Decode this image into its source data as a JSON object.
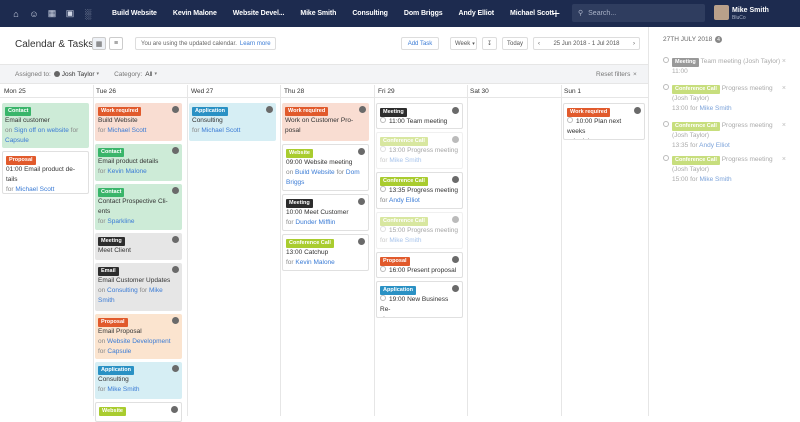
{
  "topbar": {
    "icons": [
      "home-icon",
      "person-icon",
      "calendar-icon",
      "briefcase-icon",
      "building-icon"
    ],
    "tabs": [
      "Build Website",
      "Kevin Malone",
      "Website Devel...",
      "Mike Smith",
      "Consulting",
      "Dom Briggs",
      "Andy Elliot",
      "Michael Scott"
    ],
    "search_placeholder": "Search...",
    "user_name": "Mike Smith",
    "user_company": "BluCo"
  },
  "header": {
    "title": "Calendar & Tasks",
    "notice": "You are using the updated calendar.",
    "notice_link": "Learn more",
    "add_task": "Add Task",
    "view_select": "Week",
    "today": "Today",
    "date_range": "25 Jun 2018 - 1 Jul 2018"
  },
  "filters": {
    "assigned_label": "Assigned to:",
    "assigned_value": "Josh Taylor",
    "category_label": "Category:",
    "category_value": "All",
    "reset": "Reset filters"
  },
  "days": [
    "Mon 25",
    "Tue 26",
    "Wed 27",
    "Thu 28",
    "Fri 29",
    "Sat 30",
    "Sun 1"
  ],
  "mon": [
    {
      "badge": "Contact",
      "t1": "Email customer",
      "on": "on",
      "link": "Sign off on website",
      "for": "for",
      "who": "Capsule"
    },
    {
      "badge": "Proposal",
      "t1": "01:00 Email product de-",
      "t2": "tails",
      "for": "for",
      "who": "Michael Scott"
    }
  ],
  "tue": [
    {
      "badge": "Work required",
      "t1": "Build Website",
      "for": "for",
      "who": "Michael Scott"
    },
    {
      "badge": "Contact",
      "t1": "Email product details",
      "for": "for",
      "who": "Kevin Malone"
    },
    {
      "badge": "Contact",
      "t1": "Contact Prospective Cli-",
      "t2": "ents",
      "for": "for",
      "who": "Sparkline"
    },
    {
      "badge": "Meeting",
      "t1": "Meet Client"
    },
    {
      "badge": "Email",
      "t1": "Email Customer Updates",
      "on": "on",
      "link": "Consulting",
      "for": "for",
      "who": "Mike",
      "who2": "Smith"
    },
    {
      "badge": "Proposal",
      "t1": "Email Proposal",
      "on": "on",
      "link": "Website Development",
      "for": "for",
      "who": "Capsule"
    },
    {
      "badge": "Application",
      "t1": "Consulting",
      "for": "for",
      "who": "Mike Smith"
    },
    {
      "badge": "Website"
    }
  ],
  "wed": [
    {
      "badge": "Application",
      "t1": "Consulting",
      "for": "for",
      "who": "Michael Scott"
    }
  ],
  "thu": [
    {
      "badge": "Work required",
      "t1": "Work on Customer Pro-",
      "t2": "posal"
    },
    {
      "badge": "Website",
      "t1": "09:00 Website meeting",
      "on": "on",
      "link": "Build Website",
      "for": "for",
      "who": "Dom",
      "who2": "Briggs"
    },
    {
      "badge": "Meeting",
      "t1": "10:00 Meet Customer",
      "for": "for",
      "who": "Dunder Mifflin"
    },
    {
      "badge": "Conference Call",
      "t1": "13:00 Catchup",
      "for": "for",
      "who": "Kevin Malone"
    }
  ],
  "fri": [
    {
      "badge": "Meeting",
      "t1": "11:00 Team meeting"
    },
    {
      "badge": "Conference Call",
      "t1": "13:00 Progress meeting",
      "for": "for",
      "who": "Mike Smith"
    },
    {
      "badge": "Conference Call",
      "t1": "13:35 Progress meeting",
      "for": "for",
      "who": "Andy Elliot"
    },
    {
      "badge": "Conference Call",
      "t1": "15:00 Progress meeting",
      "for": "for",
      "who": "Mike Smith"
    },
    {
      "badge": "Proposal",
      "t1": "16:00 Present proposal"
    },
    {
      "badge": "Application",
      "t1": "19:00 New Business Re-",
      "t2": "views"
    }
  ],
  "sun": [
    {
      "badge": "Work required",
      "t1": "10:00 Plan next weeks",
      "t2": "schedule"
    }
  ],
  "sidebar": {
    "date": "27TH JULY 2018",
    "count": "4",
    "items": [
      {
        "badge": "Meeting",
        "text": "Team meeting",
        "who": "(Josh Taylor)",
        "time": "11:00"
      },
      {
        "badge": "Conference Call",
        "text": "Progress meeting",
        "who": "(Josh Taylor)",
        "time": "13:00",
        "for": "for",
        "link": "Mike Smith"
      },
      {
        "badge": "Conference Call",
        "text": "Progress meeting",
        "who": "(Josh Taylor)",
        "time": "13:35",
        "for": "for",
        "link": "Andy Elliot"
      },
      {
        "badge": "Conference Call",
        "text": "Progress meeting",
        "who": "(Josh Taylor)",
        "time": "15:00",
        "for": "for",
        "link": "Mike Smith"
      }
    ]
  }
}
